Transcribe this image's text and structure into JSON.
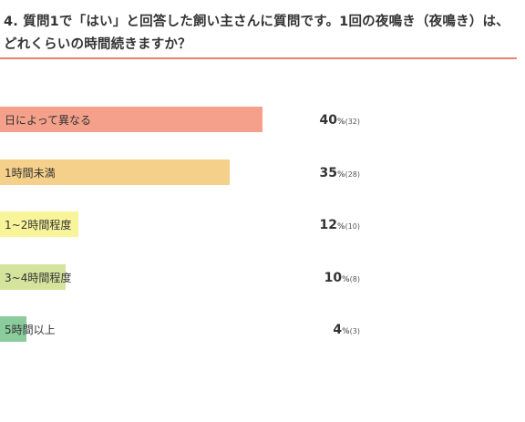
{
  "title": "4. 質問1で「はい」と回答した飼い主さんに質問です。1回の夜鳴き（夜鳴き）は、どれくらいの時間続きますか？",
  "colors": {
    "title_rule": "#f08070",
    "bars": [
      "#f4a08a",
      "#f4d08a",
      "#f8f49a",
      "#d4e49c",
      "#8acc9c"
    ]
  },
  "chart_data": {
    "type": "bar",
    "orientation": "horizontal",
    "title": "4. 質問1で「はい」と回答した飼い主さんに質問です。1回の夜鳴き（夜鳴き）は、どれくらいの時間続きますか？",
    "categories": [
      "日によって異なる",
      "1時間未満",
      "1~2時間程度",
      "3~4時間程度",
      "5時間以上"
    ],
    "values": [
      40,
      35,
      12,
      10,
      4
    ],
    "counts": [
      32,
      28,
      10,
      8,
      3
    ],
    "value_unit": "%",
    "count_format": "(n)",
    "xlim": [
      0,
      100
    ],
    "grid": false,
    "legend": "none"
  }
}
